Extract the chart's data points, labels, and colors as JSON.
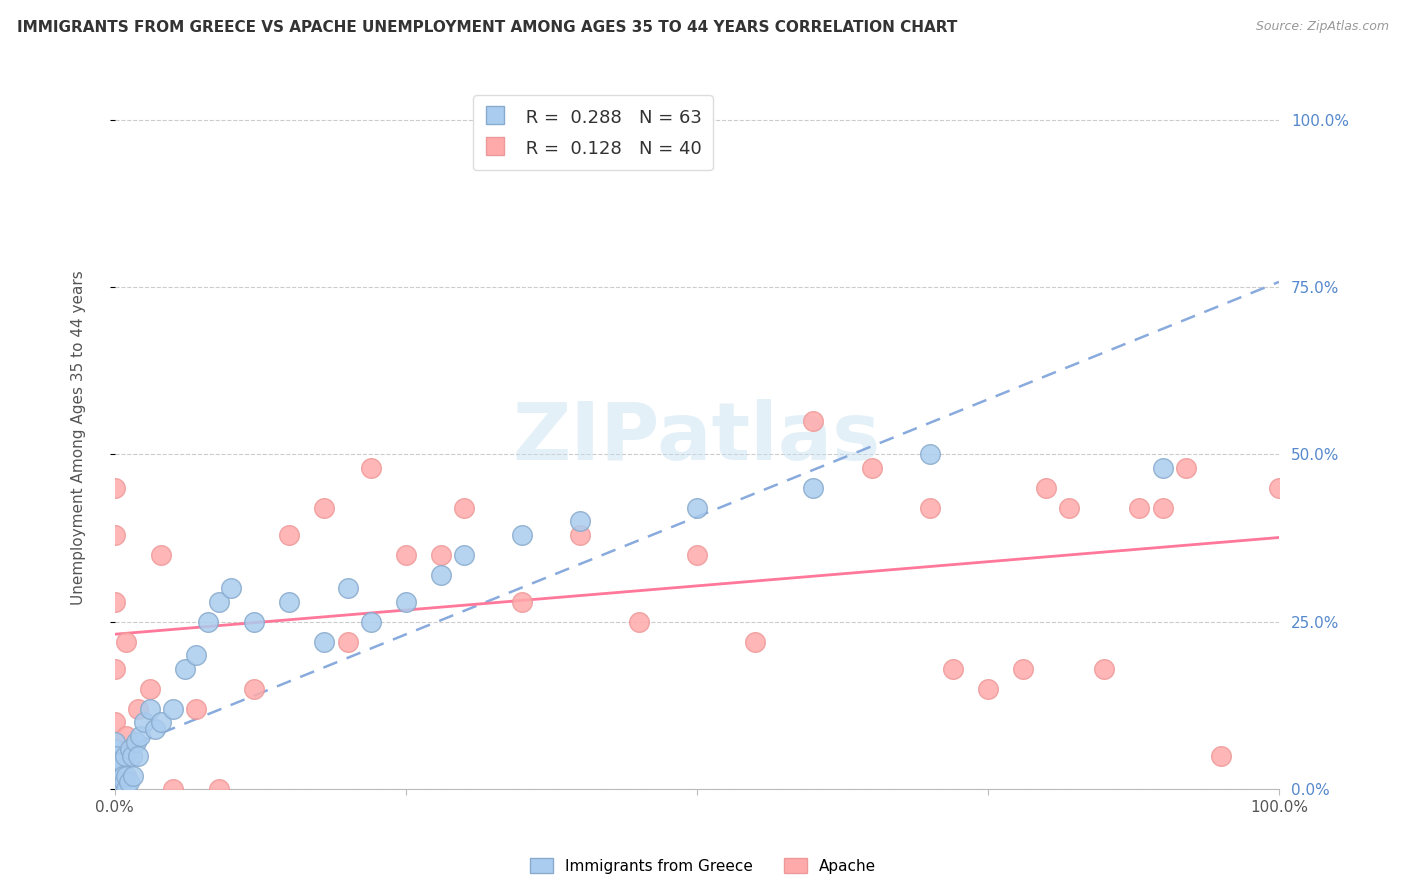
{
  "title": "IMMIGRANTS FROM GREECE VS APACHE UNEMPLOYMENT AMONG AGES 35 TO 44 YEARS CORRELATION CHART",
  "source": "Source: ZipAtlas.com",
  "ylabel": "Unemployment Among Ages 35 to 44 years",
  "r_greece": 0.288,
  "n_greece": 63,
  "r_apache": 0.128,
  "n_apache": 40,
  "color_greece": "#aaccee",
  "color_apache": "#ffaaaa",
  "trendline_greece_color": "#88aadd",
  "trendline_apache_color": "#ff7799",
  "ytick_vals": [
    0.0,
    0.25,
    0.5,
    0.75,
    1.0
  ],
  "ytick_labels_right": [
    "0.0%",
    "25.0%",
    "50.0%",
    "75.0%",
    "100.0%"
  ],
  "xtick_left_label": "0.0%",
  "xtick_right_label": "100.0%",
  "xlim": [
    0.0,
    1.0
  ],
  "ylim": [
    0.0,
    1.05
  ],
  "watermark": "ZIPatlas",
  "legend_label_greece": "Immigrants from Greece",
  "legend_label_apache": "Apache",
  "greece_scatter_x": [
    0.0,
    0.0,
    0.0,
    0.0,
    0.0,
    0.0,
    0.0,
    0.0,
    0.0,
    0.0,
    0.001,
    0.001,
    0.001,
    0.001,
    0.001,
    0.002,
    0.002,
    0.002,
    0.003,
    0.003,
    0.004,
    0.004,
    0.005,
    0.005,
    0.006,
    0.006,
    0.007,
    0.007,
    0.008,
    0.009,
    0.01,
    0.01,
    0.012,
    0.013,
    0.015,
    0.016,
    0.018,
    0.02,
    0.022,
    0.025,
    0.03,
    0.035,
    0.04,
    0.05,
    0.06,
    0.07,
    0.08,
    0.09,
    0.1,
    0.12,
    0.15,
    0.18,
    0.2,
    0.22,
    0.25,
    0.28,
    0.3,
    0.35,
    0.4,
    0.5,
    0.6,
    0.7,
    0.9
  ],
  "greece_scatter_y": [
    0.0,
    0.0,
    0.01,
    0.02,
    0.02,
    0.03,
    0.04,
    0.05,
    0.06,
    0.07,
    0.0,
    0.01,
    0.02,
    0.03,
    0.05,
    0.0,
    0.02,
    0.04,
    0.01,
    0.03,
    0.01,
    0.03,
    0.0,
    0.02,
    0.01,
    0.04,
    0.0,
    0.02,
    0.01,
    0.05,
    0.0,
    0.02,
    0.01,
    0.06,
    0.05,
    0.02,
    0.07,
    0.05,
    0.08,
    0.1,
    0.12,
    0.09,
    0.1,
    0.12,
    0.18,
    0.2,
    0.25,
    0.28,
    0.3,
    0.25,
    0.28,
    0.22,
    0.3,
    0.25,
    0.28,
    0.32,
    0.35,
    0.38,
    0.4,
    0.42,
    0.45,
    0.5,
    0.48
  ],
  "apache_scatter_x": [
    0.0,
    0.0,
    0.0,
    0.0,
    0.0,
    0.01,
    0.01,
    0.02,
    0.03,
    0.04,
    0.05,
    0.07,
    0.09,
    0.12,
    0.15,
    0.18,
    0.2,
    0.22,
    0.25,
    0.28,
    0.3,
    0.35,
    0.4,
    0.45,
    0.5,
    0.55,
    0.6,
    0.65,
    0.7,
    0.72,
    0.75,
    0.78,
    0.8,
    0.82,
    0.85,
    0.88,
    0.9,
    0.92,
    0.95,
    1.0
  ],
  "apache_scatter_y": [
    0.1,
    0.18,
    0.28,
    0.38,
    0.45,
    0.08,
    0.22,
    0.12,
    0.15,
    0.35,
    0.0,
    0.12,
    0.0,
    0.15,
    0.38,
    0.42,
    0.22,
    0.48,
    0.35,
    0.35,
    0.42,
    0.28,
    0.38,
    0.25,
    0.35,
    0.22,
    0.55,
    0.48,
    0.42,
    0.18,
    0.15,
    0.18,
    0.45,
    0.42,
    0.18,
    0.42,
    0.42,
    0.48,
    0.05,
    0.45
  ]
}
